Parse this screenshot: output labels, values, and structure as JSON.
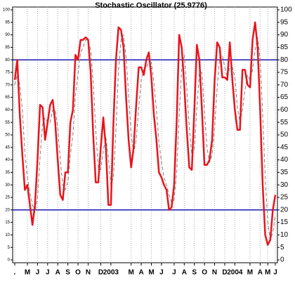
{
  "chart_data": {
    "type": "line",
    "title": "Stochastic Oscillator (25.9776)",
    "categories": [
      ".",
      null,
      null,
      null,
      null,
      "M",
      null,
      null,
      null,
      "J",
      null,
      null,
      null,
      "J",
      null,
      null,
      null,
      "A",
      null,
      null,
      null,
      "S",
      null,
      null,
      null,
      "O",
      null,
      null,
      null,
      "N",
      null,
      null,
      null,
      null,
      "D",
      null,
      null,
      null,
      "2003",
      null,
      null,
      null,
      null,
      null,
      null,
      null,
      "M",
      null,
      null,
      null,
      "A",
      null,
      null,
      null,
      "M",
      null,
      null,
      null,
      "J",
      null,
      null,
      null,
      null,
      "J",
      null,
      null,
      null,
      "A",
      null,
      null,
      null,
      "S",
      null,
      null,
      null,
      "O",
      null,
      null,
      null,
      "N",
      null,
      null,
      null,
      "D",
      null,
      null,
      null,
      "2004",
      null,
      null,
      null,
      null,
      null,
      "M",
      null,
      null,
      null,
      "A",
      null,
      null,
      "M",
      null,
      null,
      "J"
    ],
    "series": [
      {
        "color": "#e8141c",
        "values": [
          72,
          80,
          58,
          42,
          28,
          30,
          22,
          14,
          22,
          40,
          62,
          61,
          48,
          55,
          62,
          64,
          55,
          40,
          26,
          24,
          35,
          35,
          55,
          60,
          82,
          80,
          88,
          88,
          89,
          88,
          75,
          50,
          31,
          31,
          45,
          57,
          45,
          22,
          22,
          55,
          80,
          93,
          92,
          85,
          65,
          48,
          37,
          45,
          62,
          77,
          77,
          74,
          80,
          83,
          73,
          58,
          48,
          35,
          33,
          30,
          28,
          20,
          21,
          30,
          55,
          90,
          85,
          70,
          52,
          37,
          36,
          60,
          86,
          80,
          60,
          38,
          38,
          40,
          48,
          72,
          87,
          85,
          73,
          73,
          72,
          87,
          72,
          60,
          52,
          52,
          76,
          76,
          70,
          69,
          88,
          95,
          85,
          60,
          30,
          10,
          6,
          8,
          20,
          26
        ]
      },
      {
        "color": "#808080",
        "dashed": true,
        "values": [
          70,
          74,
          70,
          60,
          43,
          33,
          27,
          22,
          19,
          25,
          41,
          54,
          57,
          55,
          55,
          60,
          60,
          53,
          40,
          30,
          28,
          31,
          42,
          50,
          66,
          74,
          83,
          85,
          88,
          88,
          84,
          71,
          52,
          37,
          36,
          44,
          49,
          41,
          30,
          33,
          52,
          76,
          88,
          90,
          81,
          66,
          50,
          43,
          48,
          61,
          72,
          76,
          77,
          79,
          79,
          71,
          60,
          47,
          39,
          33,
          30,
          26,
          23,
          24,
          35,
          58,
          77,
          82,
          69,
          53,
          42,
          44,
          61,
          75,
          75,
          59,
          45,
          39,
          42,
          53,
          69,
          81,
          82,
          77,
          73,
          77,
          77,
          73,
          61,
          55,
          60,
          68,
          74,
          72,
          76,
          84,
          89,
          80,
          58,
          33,
          15,
          8,
          11,
          18
        ]
      }
    ],
    "ylim": [
      0,
      100
    ],
    "yticks": [
      0,
      5,
      10,
      15,
      20,
      25,
      30,
      35,
      40,
      45,
      50,
      55,
      60,
      65,
      70,
      75,
      80,
      85,
      90,
      95,
      100
    ],
    "reference_lines": [
      80,
      20
    ],
    "reference_color": "#0000aa",
    "grid": true
  }
}
